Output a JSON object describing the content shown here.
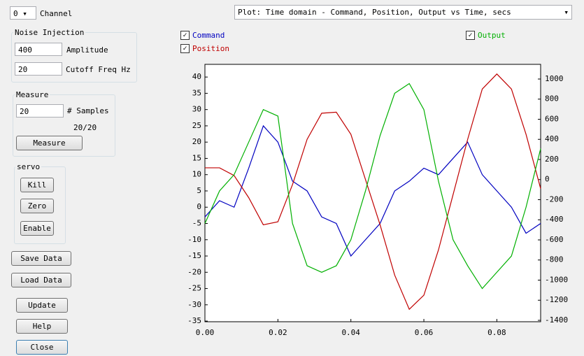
{
  "channel": {
    "value": "0",
    "label": "Channel"
  },
  "noise_injection": {
    "title": "Noise Injection",
    "amplitude": {
      "value": "400",
      "label": "Amplitude"
    },
    "cutoff": {
      "value": "20",
      "label": "Cutoff Freq Hz"
    }
  },
  "measure": {
    "title": "Measure",
    "samples": {
      "value": "20",
      "label": "# Samples"
    },
    "progress": "20/20",
    "button": "Measure"
  },
  "servo": {
    "title": "servo",
    "buttons": [
      "Kill",
      "Zero",
      "Enable"
    ]
  },
  "buttons": [
    "Save Data",
    "Load Data",
    "Update",
    "Help",
    "Close"
  ],
  "plot_select": "Plot: Time domain - Command, Position, Output vs Time, secs",
  "chart_data": {
    "type": "line",
    "x": [
      0,
      0.004,
      0.008,
      0.012,
      0.016,
      0.02,
      0.024,
      0.028,
      0.032,
      0.036,
      0.04,
      0.044,
      0.048,
      0.052,
      0.056,
      0.06,
      0.064,
      0.068,
      0.072,
      0.076,
      0.08,
      0.084,
      0.088,
      0.092
    ],
    "xlim": [
      0,
      0.092
    ],
    "xticks": [
      {
        "value": 0,
        "label": "0.00"
      },
      0.02,
      0.04,
      0.06,
      0.08
    ],
    "ylim": [
      -35.2,
      43.9
    ],
    "yticks": [
      -35,
      -30,
      -25,
      -20,
      -15,
      -10,
      -5,
      0,
      5,
      10,
      15,
      20,
      25,
      30,
      35,
      40
    ],
    "y2lim": [
      -1414,
      1146
    ],
    "y2ticks": [
      -1400,
      -1200,
      -1000,
      -800,
      -600,
      -400,
      -200,
      0,
      200,
      400,
      600,
      800,
      1000
    ],
    "series": [
      {
        "name": "Command",
        "color": "#0000c0",
        "values": [
          -3,
          2,
          0,
          12,
          25,
          20,
          8,
          5,
          -3,
          -5,
          -15,
          -10,
          -5,
          5,
          8,
          12,
          10,
          15,
          20,
          10,
          5,
          0,
          -8,
          -5
        ]
      },
      {
        "name": "Position",
        "color": "#c00000",
        "axis": "y2",
        "values": [
          117,
          117,
          40,
          -180,
          -450,
          -420,
          -50,
          400,
          660,
          670,
          450,
          0,
          -450,
          -950,
          -1290,
          -1150,
          -700,
          -150,
          400,
          900,
          1050,
          900,
          450,
          -90
        ]
      },
      {
        "name": "Output",
        "color": "#00b000",
        "values": [
          -5,
          5,
          10,
          20,
          30,
          28,
          -5,
          -18,
          -20,
          -18,
          -10,
          5,
          22,
          35,
          38,
          30,
          8,
          -10,
          -18,
          -25,
          -20,
          -15,
          0,
          18
        ]
      }
    ]
  }
}
